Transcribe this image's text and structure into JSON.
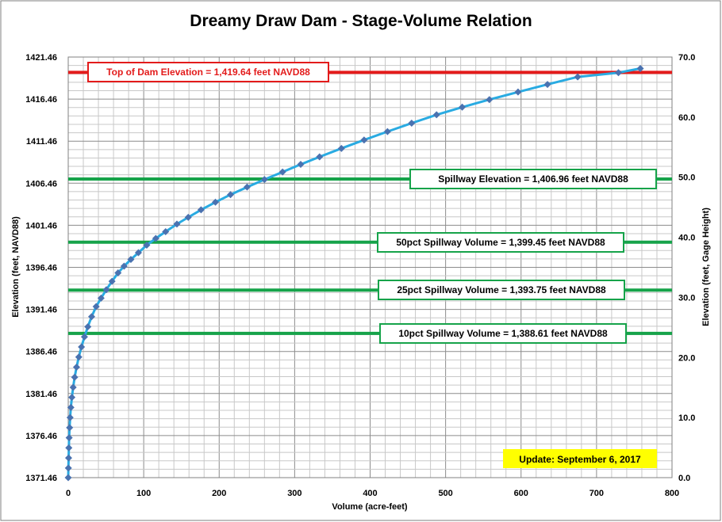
{
  "chart_data": {
    "type": "line",
    "title": "Dreamy Draw Dam - Stage-Volume Relation",
    "xlabel": "Volume (acre-feet)",
    "ylabel": "Elevation (feet, NAVD88)",
    "ylabel_right": "Elevation (feet, Gage Height)",
    "xlim": [
      0,
      800
    ],
    "ylim": [
      1371.46,
      1421.46
    ],
    "ylim_right": [
      0.0,
      70.0
    ],
    "x_ticks": [
      "0",
      "100",
      "200",
      "300",
      "400",
      "500",
      "600",
      "700",
      "800"
    ],
    "y_ticks_left": [
      "1371.46",
      "1376.46",
      "1381.46",
      "1386.46",
      "1391.46",
      "1396.46",
      "1401.46",
      "1406.46",
      "1411.46",
      "1416.46",
      "1421.46"
    ],
    "y_ticks_right": [
      "0.0",
      "10.0",
      "20.0",
      "30.0",
      "40.0",
      "50.0",
      "60.0",
      "70.0"
    ],
    "grid": true,
    "series": [
      {
        "color": "#29abe2",
        "marker_color": "#4a72b0",
        "x": [
          0,
          0.2,
          0.5,
          0.8,
          1.2,
          1.8,
          2.5,
          3.5,
          4.8,
          6.5,
          8.5,
          11,
          14,
          17.5,
          21.5,
          26,
          31,
          37,
          43.5,
          50.5,
          58,
          66,
          74,
          83,
          93,
          104,
          116,
          129,
          144,
          159,
          176,
          195,
          215,
          237,
          260,
          284,
          308,
          333,
          362,
          392,
          423,
          455,
          488,
          522,
          558,
          596,
          635,
          675,
          729,
          758
        ],
        "y": [
          1371.46,
          1372.6,
          1373.8,
          1375.0,
          1376.2,
          1377.4,
          1378.6,
          1379.8,
          1381.0,
          1382.2,
          1383.4,
          1384.6,
          1385.8,
          1387.0,
          1388.2,
          1389.4,
          1390.6,
          1391.8,
          1392.8,
          1393.8,
          1394.8,
          1395.8,
          1396.6,
          1397.4,
          1398.2,
          1399.1,
          1399.9,
          1400.7,
          1401.6,
          1402.4,
          1403.3,
          1404.2,
          1405.1,
          1406.0,
          1406.9,
          1407.8,
          1408.7,
          1409.6,
          1410.6,
          1411.6,
          1412.6,
          1413.6,
          1414.6,
          1415.5,
          1416.4,
          1417.3,
          1418.2,
          1419.1,
          1419.6,
          1420.1
        ]
      }
    ],
    "reference_lines": [
      {
        "label": "Top of Dam Elevation = 1,419.64  feet NAVD88",
        "y": 1419.64,
        "color": "#e31b1b",
        "text_color": "#e31b1b"
      },
      {
        "label": "Spillway Elevation = 1,406.96  feet NAVD88",
        "y": 1406.96,
        "color": "#16a34a",
        "text_color": "#000000"
      },
      {
        "label": "50pct Spillway Volume = 1,399.45  feet NAVD88",
        "y": 1399.45,
        "color": "#16a34a",
        "text_color": "#000000"
      },
      {
        "label": "25pct Spillway Volume = 1,393.75  feet NAVD88",
        "y": 1393.75,
        "color": "#16a34a",
        "text_color": "#000000"
      },
      {
        "label": "10pct Spillway Volume = 1,388.61  feet NAVD88",
        "y": 1388.61,
        "color": "#16a34a",
        "text_color": "#000000"
      }
    ],
    "annotations": [
      {
        "text": "Update: September 6, 2017",
        "background": "#ffff00"
      }
    ]
  }
}
